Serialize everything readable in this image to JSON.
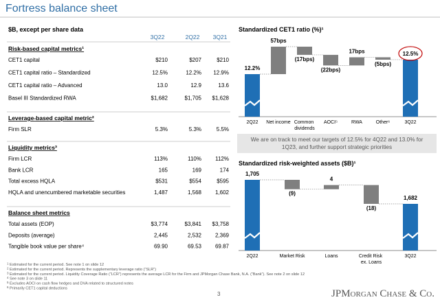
{
  "header": {
    "title": "Fortress balance sheet"
  },
  "table": {
    "caption": "$B, except per share data",
    "columns": [
      "3Q22",
      "2Q22",
      "3Q21"
    ],
    "sections": [
      {
        "title": "Risk-based capital metrics¹",
        "rows": [
          [
            "CET1 capital",
            "$210",
            "$207",
            "$210"
          ],
          [
            "CET1 capital ratio – Standardized",
            "12.5%",
            "12.2%",
            "12.9%"
          ],
          [
            "CET1 capital ratio – Advanced",
            "13.0",
            "12.9",
            "13.6"
          ],
          [
            "Basel III Standardized RWA",
            "$1,682",
            "$1,705",
            "$1,628"
          ]
        ]
      },
      {
        "title": "Leverage-based capital metric²",
        "rows": [
          [
            "Firm SLR",
            "5.3%",
            "5.3%",
            "5.5%"
          ]
        ]
      },
      {
        "title": "Liquidity metrics³",
        "rows": [
          [
            "Firm LCR",
            "113%",
            "110%",
            "112%"
          ],
          [
            "Bank LCR",
            "165",
            "169",
            "174"
          ],
          [
            "Total excess HQLA",
            "$531",
            "$554",
            "$595"
          ],
          [
            "HQLA and unencumbered marketable securities",
            "1,487",
            "1,568",
            "1,602"
          ]
        ]
      },
      {
        "title": "Balance sheet metrics",
        "rows": [
          [
            "Total assets (EOP)",
            "$3,774",
            "$3,841",
            "$3,758"
          ],
          [
            "Deposits (average)",
            "2,445",
            "2,532",
            "2,369"
          ],
          [
            "Tangible book value per share⁴",
            "69.90",
            "69.53",
            "69.87"
          ]
        ]
      }
    ]
  },
  "chart_data": [
    {
      "type": "waterfall",
      "title": "Standardized CET1 ratio (%)¹",
      "categories": [
        "2Q22",
        "Net income",
        "Common dividends",
        "AOCI⁵",
        "RWA",
        "Other⁶",
        "3Q22"
      ],
      "values": [
        12.2,
        57,
        -17,
        -22,
        17,
        -5,
        12.5
      ],
      "value_labels": [
        "12.2%",
        "57bps",
        "(17bps)",
        "(22bps)",
        "17bps",
        "(5bps)",
        "12.5%"
      ],
      "total_color": "#1f6fb5",
      "delta_color": "#7f7f7f"
    },
    {
      "type": "waterfall",
      "title": "Standardized risk-weighted assets ($B)¹",
      "categories": [
        "2Q22",
        "Market Risk",
        "Loans",
        "Credit Risk ex. Loans",
        "3Q22"
      ],
      "values": [
        1705,
        -9,
        4,
        -18,
        1682
      ],
      "value_labels": [
        "1,705",
        "(9)",
        "4",
        "(18)",
        "1,682"
      ],
      "total_color": "#1f6fb5",
      "delta_color": "#7f7f7f"
    }
  ],
  "callout": "We are on track to meet our targets of 12.5% for 4Q22 and 13.0% for 1Q23, and further support strategic priorities",
  "footnotes": [
    {
      "number": "1",
      "text": "Estimated for the current period. See note 1 on slide 12"
    },
    {
      "number": "2",
      "text": "Estimated for the current period. Represents the supplementary leverage ratio (“SLR”)"
    },
    {
      "number": "3",
      "text": "Estimated for the current period. Liquidity Coverage Ratio (“LCR”) represents the average LCR for the Firm and JPMorgan Chase Bank, N.A. (“Bank”). See note 2 on slide 12"
    },
    {
      "number": "4",
      "text": "See note 3 on slide 11"
    },
    {
      "number": "5",
      "text": "Excludes AOCI on cash flow hedges and DVA related to structured notes"
    },
    {
      "number": "6",
      "text": "Primarily CET1 capital deductions"
    }
  ],
  "page_number": "3",
  "logo": "JPMorgan Chase & Co."
}
